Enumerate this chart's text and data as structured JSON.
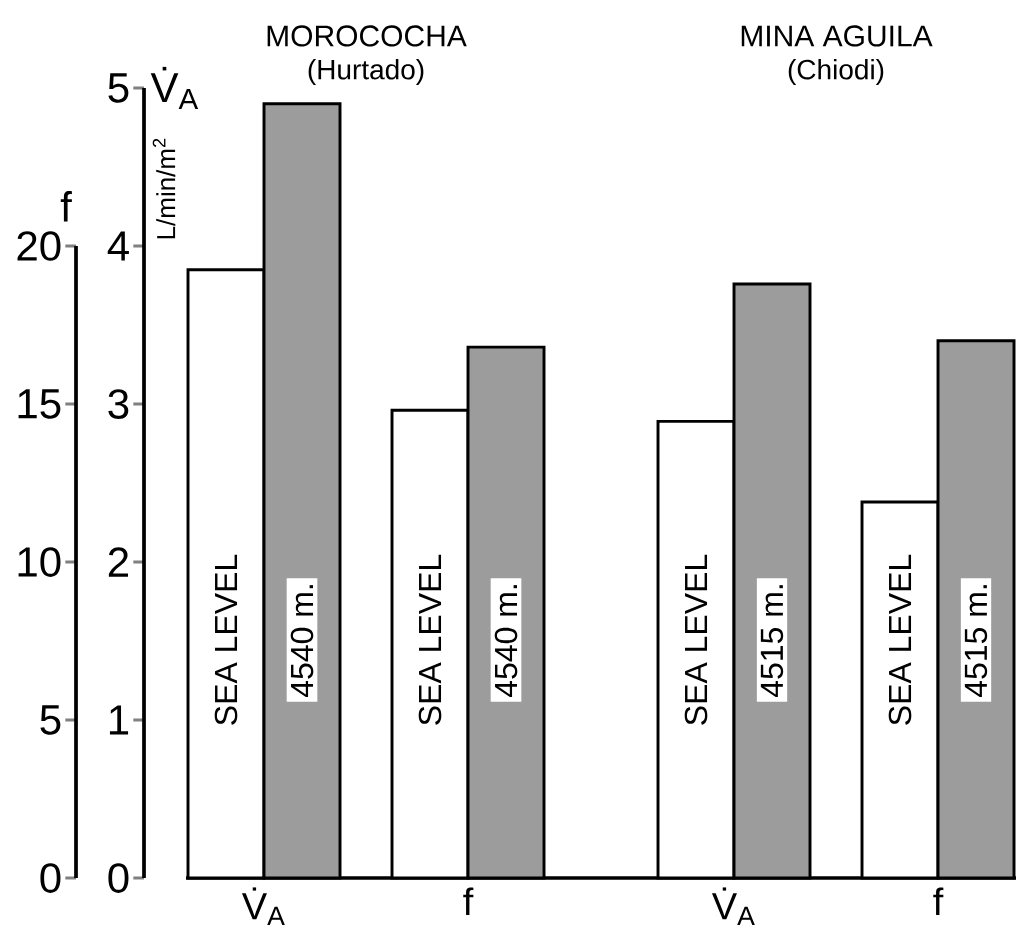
{
  "chart_data": [
    {
      "type": "bar",
      "title": "MOROCOCHA",
      "subtitle": "(Hurtado)",
      "ylabel": "V̇$_{A}$",
      "y2label": "f",
      "annotations": [
        "L/min/m$^{2}$"
      ],
      "categories": [
        "V̇$_{A}$",
        "f"
      ],
      "series": [
        {
          "name": "SEA LEVEL",
          "color": "#ffffff",
          "values": [
            3.85,
            null
          ]
        },
        {
          "name": "4540 m.",
          "color": "#9c9c9c",
          "values": [
            4.9,
            null
          ]
        },
        {
          "name": "SEA LEVEL",
          "color": "#ffffff",
          "axis": "y2",
          "values": [
            null,
            14.8
          ]
        },
        {
          "name": "4540 m.",
          "color": "#9c9c9c",
          "axis": "y2",
          "values": [
            null,
            16.8
          ]
        }
      ],
      "ylim": [
        0,
        5
      ],
      "yticks": [
        0,
        1,
        2,
        3,
        4,
        5
      ],
      "y2lim": [
        0,
        20
      ],
      "y2ticks": [
        0,
        5,
        10,
        15,
        20
      ]
    },
    {
      "type": "bar",
      "title": "MINA AGUILA",
      "subtitle": "(Chiodi)",
      "categories": [
        "V̇$_{A}$",
        "f"
      ],
      "series": [
        {
          "name": "SEA LEVEL",
          "color": "#ffffff",
          "values": [
            2.89,
            null
          ]
        },
        {
          "name": "4515 m.",
          "color": "#9c9c9c",
          "values": [
            3.76,
            null
          ]
        },
        {
          "name": "SEA LEVEL",
          "color": "#ffffff",
          "axis": "y2",
          "values": [
            null,
            11.9
          ]
        },
        {
          "name": "4515 m.",
          "color": "#9c9c9c",
          "axis": "y2",
          "values": [
            null,
            17.0
          ]
        }
      ],
      "ylim": [
        0,
        5
      ],
      "y2lim": [
        0,
        20
      ],
      "tick_labels": "x"
    }
  ]
}
